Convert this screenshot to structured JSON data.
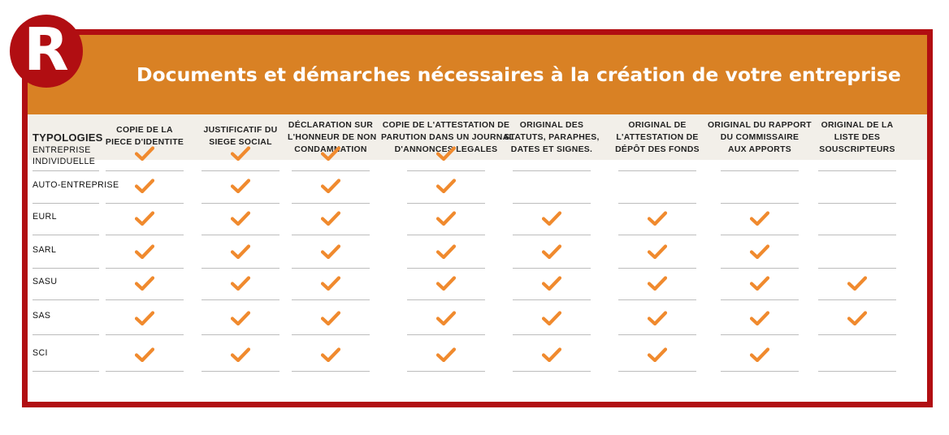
{
  "logo": {
    "letter": "R"
  },
  "title": "Documents et démarches nécessaires à la création de votre entreprise",
  "header_label": "TYPOLOGIES",
  "columns": [
    "COPIE DE LA\nPIECE D'IDENTITE",
    "JUSTIFICATIF DU\nSIEGE SOCIAL",
    "DÉCLARATION SUR\nL'HONNEUR DE NON\nCONDAMNATION",
    "COPIE DE L'ATTESTATION DE\nPARUTION DANS UN JOURNAL\nD'ANNONCES LEGALES",
    "ORIGINAL DES\nSTATUTS, PARAPHES,\nDATES ET SIGNES.",
    "ORIGINAL DE\nL'ATTESTATION DE\nDÉPÔT DES FONDS",
    "ORIGINAL DU RAPPORT\nDU COMMISSAIRE\nAUX APPORTS",
    "ORIGINAL DE LA\nLISTE DES\nSOUSCRIPTEURS"
  ],
  "rows": [
    {
      "label": "ENTREPRISE\nINDIVIDUELLE",
      "checks": [
        true,
        true,
        true,
        true,
        false,
        false,
        false,
        false
      ]
    },
    {
      "label": "AUTO-ENTREPRISE",
      "checks": [
        true,
        true,
        true,
        true,
        false,
        false,
        false,
        false
      ]
    },
    {
      "label": "EURL",
      "checks": [
        true,
        true,
        true,
        true,
        true,
        true,
        true,
        false
      ]
    },
    {
      "label": "SARL",
      "checks": [
        true,
        true,
        true,
        true,
        true,
        true,
        true,
        false
      ]
    },
    {
      "label": "SASU",
      "checks": [
        true,
        true,
        true,
        true,
        true,
        true,
        true,
        true
      ]
    },
    {
      "label": "SAS",
      "checks": [
        true,
        true,
        true,
        true,
        true,
        true,
        true,
        true
      ]
    },
    {
      "label": "SCI",
      "checks": [
        true,
        true,
        true,
        true,
        true,
        true,
        true,
        false
      ]
    }
  ],
  "colors": {
    "brand_red": "#b10e12",
    "header_orange": "#d98124",
    "check_orange": "#f08a2e"
  },
  "icons": {
    "check": "checkmark-icon"
  }
}
